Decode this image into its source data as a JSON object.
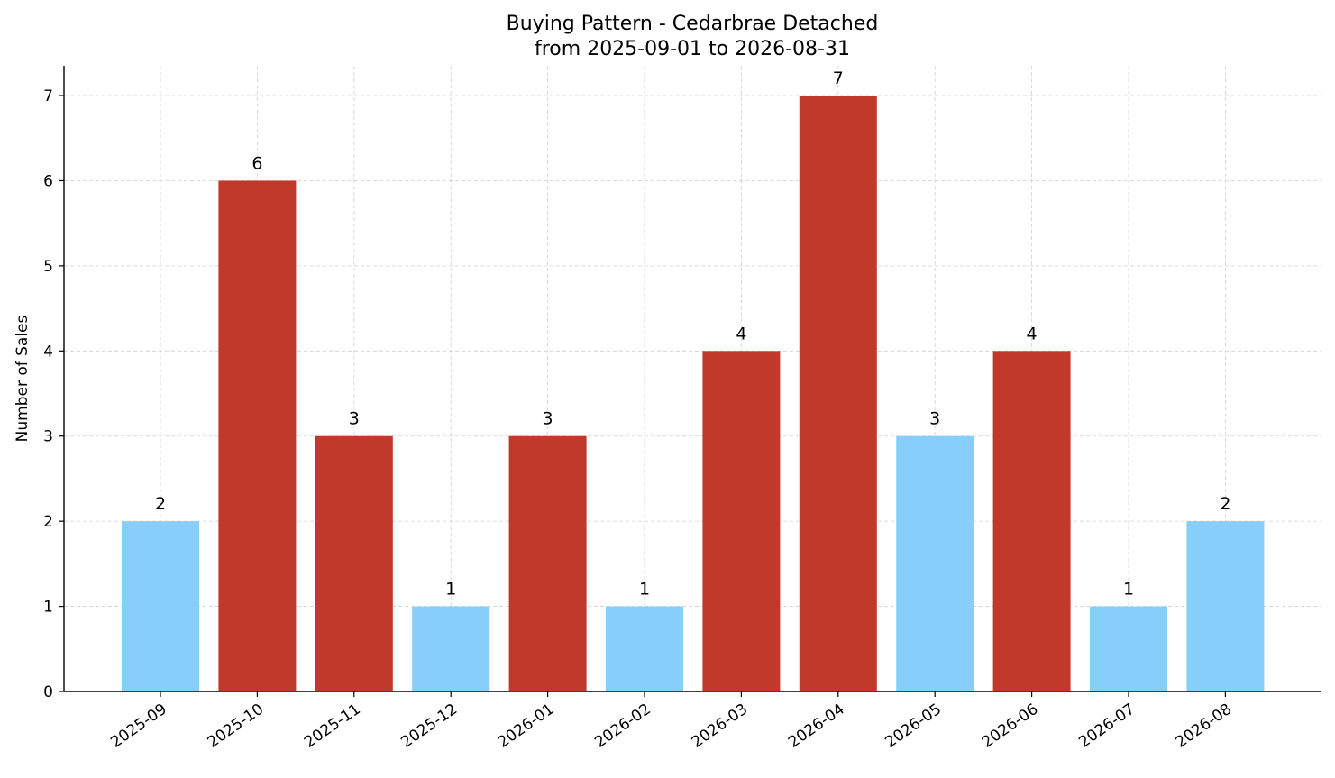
{
  "chart_data": {
    "type": "bar",
    "title": "Buying Pattern - Cedarbrae Detached",
    "subtitle": "from 2025-09-01 to 2026-08-31",
    "xlabel": "",
    "ylabel": "Number of Sales",
    "categories": [
      "2025-09",
      "2025-10",
      "2025-11",
      "2025-12",
      "2026-01",
      "2026-02",
      "2026-03",
      "2026-04",
      "2026-05",
      "2026-06",
      "2026-07",
      "2026-08"
    ],
    "values": [
      2,
      6,
      3,
      1,
      3,
      1,
      4,
      7,
      3,
      4,
      1,
      2
    ],
    "bar_colors": [
      "#87CEFA",
      "#C0392B",
      "#C0392B",
      "#87CEFA",
      "#C0392B",
      "#87CEFA",
      "#C0392B",
      "#C0392B",
      "#87CEFA",
      "#C0392B",
      "#87CEFA",
      "#87CEFA"
    ],
    "ylim": [
      0,
      7.35
    ],
    "yticks": [
      0,
      1,
      2,
      3,
      4,
      5,
      6,
      7
    ],
    "grid": true,
    "legend": "none",
    "data_labels": true
  }
}
